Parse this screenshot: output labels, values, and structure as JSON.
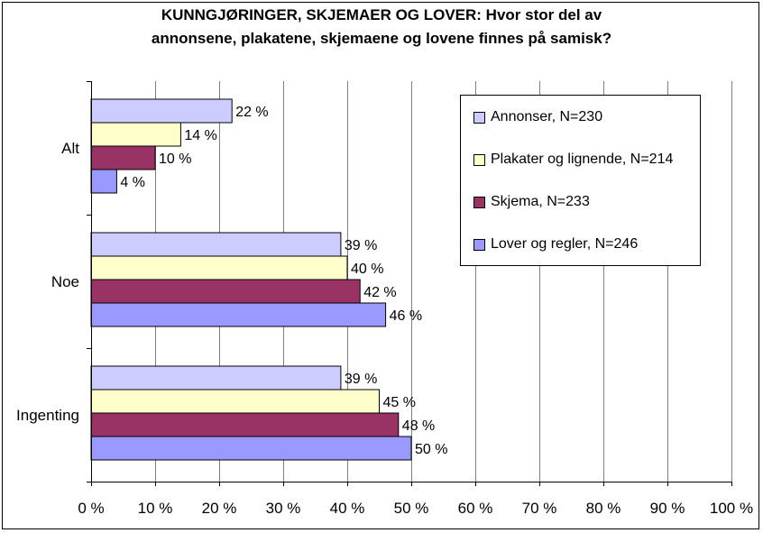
{
  "chart_data": {
    "type": "bar",
    "orientation": "horizontal",
    "title_lines": [
      "KUNNGJØRINGER, SKJEMAER OG LOVER: Hvor stor del av",
      "annonsene, plakatene, skjemaene og lovene finnes på samisk?"
    ],
    "categories": [
      "Alt",
      "Noe",
      "Ingenting"
    ],
    "series": [
      {
        "name": "Annonser, N=230",
        "color": "#ccccff",
        "values": [
          22,
          39,
          39
        ]
      },
      {
        "name": "Plakater og lignende, N=214",
        "color": "#ffffcc",
        "values": [
          14,
          40,
          45
        ]
      },
      {
        "name": "Skjema, N=233",
        "color": "#993366",
        "values": [
          10,
          42,
          48
        ]
      },
      {
        "name": "Lover og regler, N=246",
        "color": "#9999ff",
        "values": [
          4,
          46,
          50
        ]
      }
    ],
    "value_suffix": " %",
    "xlim": [
      0,
      100
    ],
    "xticks": [
      0,
      10,
      20,
      30,
      40,
      50,
      60,
      70,
      80,
      90,
      100
    ],
    "xtick_labels": [
      "0 %",
      "10 %",
      "20 %",
      "30 %",
      "40 %",
      "50 %",
      "60 %",
      "70 %",
      "80 %",
      "90 %",
      "100 %"
    ],
    "grid": true,
    "legend_position": "top-right",
    "xlabel": "",
    "ylabel": ""
  }
}
